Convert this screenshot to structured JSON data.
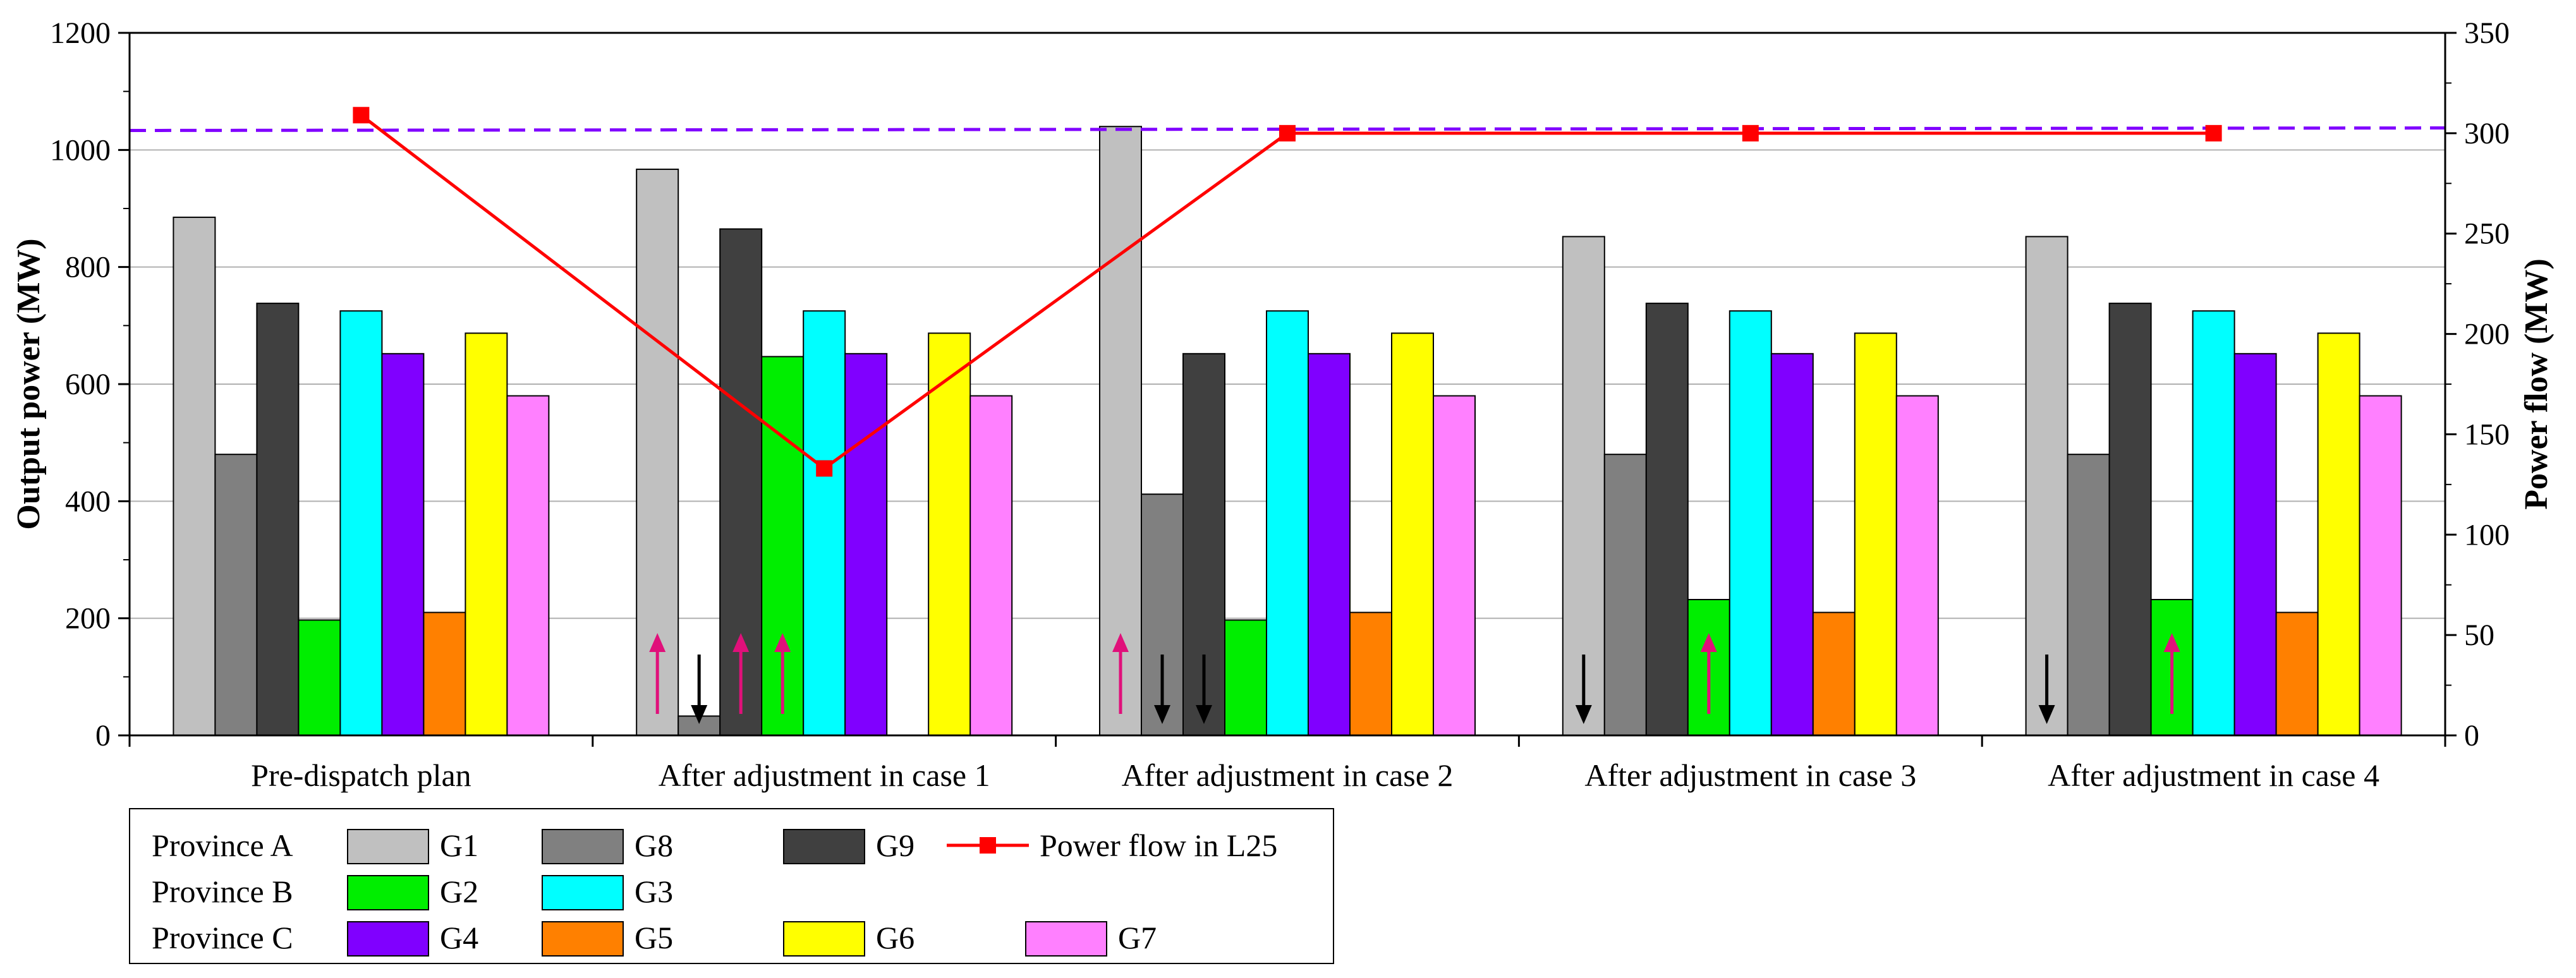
{
  "chart_data": {
    "type": "bar",
    "title": "",
    "categories": [
      "Pre-dispatch plan",
      "After adjustment in case 1",
      "After adjustment in case 2",
      "After adjustment in case 3",
      "After adjustment in case 4"
    ],
    "ylabel": "Output power (MW)",
    "y2label": "Power flow (MW)",
    "ylim": [
      0,
      1200
    ],
    "y2lim": [
      0,
      350
    ],
    "yticks": [
      "0",
      "200",
      "400",
      "600",
      "800",
      "1000",
      "1200"
    ],
    "y2ticks": [
      "0",
      "50",
      "100",
      "150",
      "200",
      "250",
      "300",
      "350"
    ],
    "series": [
      {
        "name": "G1",
        "color": "#c0c0c0",
        "values": [
          885,
          967,
          1040,
          852,
          852
        ]
      },
      {
        "name": "G8",
        "color": "#808080",
        "values": [
          480,
          33,
          412,
          480,
          480
        ]
      },
      {
        "name": "G9",
        "color": "#404040",
        "values": [
          738,
          865,
          652,
          738,
          738
        ]
      },
      {
        "name": "G2",
        "color": "#00ee00",
        "values": [
          197,
          647,
          197,
          232,
          232
        ]
      },
      {
        "name": "G3",
        "color": "#00ffff",
        "values": [
          725,
          725,
          725,
          725,
          725
        ]
      },
      {
        "name": "G4",
        "color": "#8000ff",
        "values": [
          652,
          652,
          652,
          652,
          652
        ]
      },
      {
        "name": "G5",
        "color": "#ff8000",
        "values": [
          210,
          0,
          210,
          210,
          210
        ]
      },
      {
        "name": "G6",
        "color": "#ffff00",
        "values": [
          687,
          687,
          687,
          687,
          687
        ]
      },
      {
        "name": "G7",
        "color": "#ff80ff",
        "values": [
          580,
          580,
          580,
          580,
          580
        ]
      }
    ],
    "line_series": {
      "name": "Power flow in L25",
      "axis": "right",
      "color": "#ff0000",
      "values": [
        309,
        133,
        300,
        300,
        300
      ]
    },
    "limit_line": {
      "axis": "right",
      "value": 302,
      "color": "#8000ff",
      "style": "dashed"
    },
    "adjust_arrows": [
      {
        "category": 1,
        "series": "G1",
        "direction": "up"
      },
      {
        "category": 1,
        "series": "G8",
        "direction": "down"
      },
      {
        "category": 1,
        "series": "G9",
        "direction": "up"
      },
      {
        "category": 1,
        "series": "G2",
        "direction": "up"
      },
      {
        "category": 2,
        "series": "G1",
        "direction": "up"
      },
      {
        "category": 2,
        "series": "G8",
        "direction": "down"
      },
      {
        "category": 2,
        "series": "G9",
        "direction": "down"
      },
      {
        "category": 3,
        "series": "G1",
        "direction": "down"
      },
      {
        "category": 3,
        "series": "G2",
        "direction": "up"
      },
      {
        "category": 4,
        "series": "G1",
        "direction": "down"
      },
      {
        "category": 4,
        "series": "G2",
        "direction": "up"
      }
    ],
    "legend": {
      "placement": "bottom-left",
      "rows": [
        {
          "label": "Province A",
          "items": [
            "G1",
            "G8",
            "G9"
          ]
        },
        {
          "label": "Province B",
          "items": [
            "G2",
            "G3"
          ]
        },
        {
          "label": "Province C",
          "items": [
            "G4",
            "G5",
            "G6",
            "G7"
          ]
        }
      ],
      "line_item": "Power flow in L25"
    },
    "grid": true
  }
}
